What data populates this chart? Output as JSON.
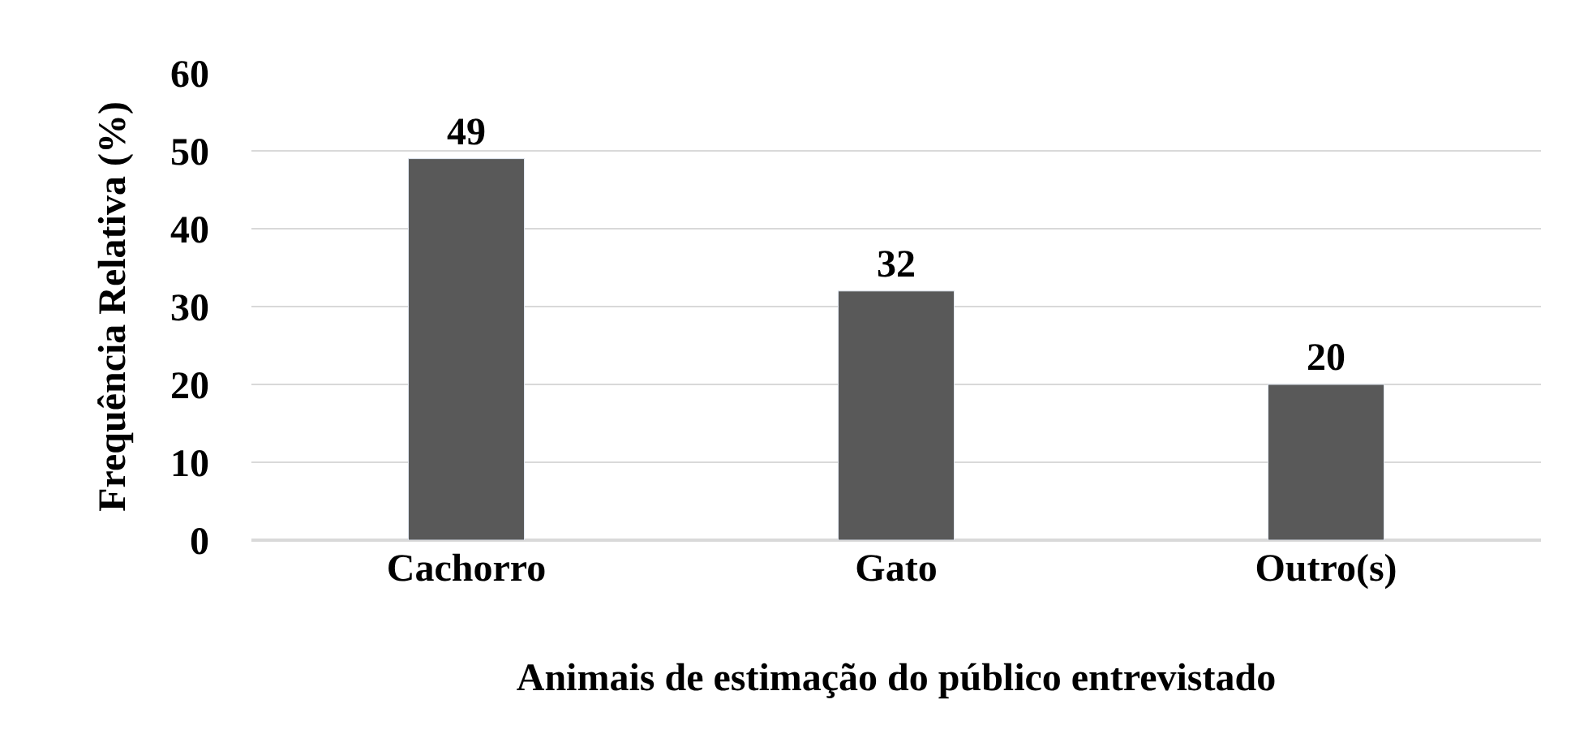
{
  "chart_data": {
    "type": "bar",
    "xlabel": "Animais de estimação do público entrevistado",
    "ylabel": "Frequência Relativa (%)",
    "categories": [
      "Cachorro",
      "Gato",
      "Outro(s)"
    ],
    "values": [
      49,
      32,
      20
    ],
    "color": "#595959",
    "ylim": [
      0,
      60
    ],
    "yticks": [
      0,
      10,
      20,
      30,
      40,
      50,
      60
    ],
    "grid": "y",
    "data_labels": true,
    "legend": false
  }
}
